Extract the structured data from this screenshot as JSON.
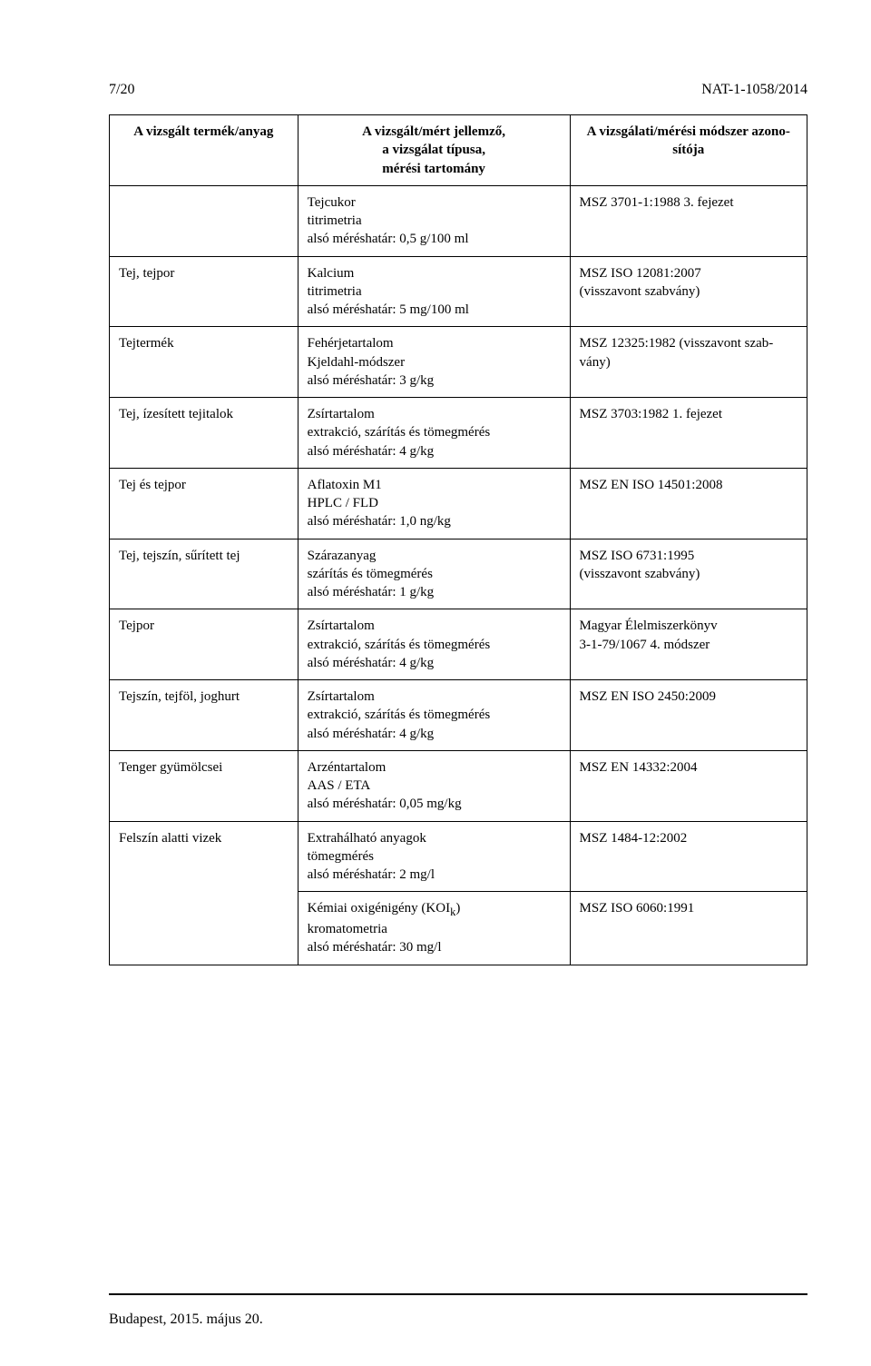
{
  "header": {
    "page_no": "7/20",
    "doc_id": "NAT-1-1058/2014"
  },
  "table": {
    "head": {
      "c1": "A vizsgált termék/anyag",
      "c2_l1": "A vizsgált/mért jellemző,",
      "c2_l2": "a vizsgálat típusa,",
      "c2_l3": "mérési tartomány",
      "c3_l1": "A vizsgálati/mérési módszer azono-",
      "c3_l2": "sítója"
    },
    "rows": [
      {
        "c1": "",
        "c2": [
          "Tejcukor",
          "titrimetria",
          "alsó méréshatár: 0,5 g/100 ml"
        ],
        "c3": [
          "MSZ 3701-1:1988 3. fejezet"
        ]
      },
      {
        "c1": "Tej, tejpor",
        "c2": [
          "Kalcium",
          "titrimetria",
          "alsó méréshatár: 5 mg/100 ml"
        ],
        "c3": [
          "MSZ ISO 12081:2007",
          "(visszavont szabvány)"
        ]
      },
      {
        "c1": "Tejtermék",
        "c2": [
          "Fehérjetartalom",
          "Kjeldahl-módszer",
          "alsó méréshatár: 3 g/kg"
        ],
        "c3": [
          "MSZ 12325:1982 (visszavont szab-",
          "vány)"
        ]
      },
      {
        "c1": "Tej, ízesített tejitalok",
        "c2": [
          "Zsírtartalom",
          "extrakció, szárítás és tömegmérés",
          "alsó méréshatár: 4 g/kg"
        ],
        "c3": [
          "MSZ 3703:1982 1. fejezet"
        ]
      },
      {
        "c1": "Tej és tejpor",
        "c2": [
          "Aflatoxin M1",
          "HPLC / FLD",
          "alsó méréshatár: 1,0 ng/kg"
        ],
        "c3": [
          "MSZ EN ISO 14501:2008"
        ]
      },
      {
        "c1": "Tej, tejszín, sűrített tej",
        "c2": [
          "Szárazanyag",
          "szárítás és tömegmérés",
          "alsó méréshatár: 1 g/kg"
        ],
        "c3": [
          "MSZ ISO 6731:1995",
          "(visszavont szabvány)"
        ]
      },
      {
        "c1": "Tejpor",
        "c2": [
          "Zsírtartalom",
          "extrakció, szárítás és tömegmérés",
          "alsó méréshatár: 4 g/kg"
        ],
        "c3": [
          "Magyar Élelmiszerkönyv",
          "3-1-79/1067 4. módszer"
        ]
      },
      {
        "c1": "Tejszín, tejföl, joghurt",
        "c2": [
          "Zsírtartalom",
          "extrakció, szárítás és tömegmérés",
          "alsó méréshatár: 4 g/kg"
        ],
        "c3": [
          "MSZ EN ISO 2450:2009"
        ]
      },
      {
        "c1": "Tenger gyümölcsei",
        "c2": [
          "Arzéntartalom",
          "AAS / ETA",
          "alsó méréshatár: 0,05 mg/kg"
        ],
        "c3": [
          "MSZ EN 14332:2004"
        ]
      },
      {
        "c1": "Felszín alatti vizek",
        "rowspan": 2,
        "c2": [
          "Extrahálható anyagok",
          "tömegmérés",
          "alsó méréshatár: 2 mg/l"
        ],
        "c3": [
          "MSZ 1484-12:2002"
        ]
      },
      {
        "suppress_c1": true,
        "c2_html": "Kémiai oxigénigény (KOI<sub>k</sub>)<br>kromatometria<br>alsó méréshatár: 30 mg/l",
        "c3": [
          "MSZ ISO 6060:1991"
        ]
      }
    ]
  },
  "footer": {
    "text": "Budapest, 2015. május 20."
  }
}
